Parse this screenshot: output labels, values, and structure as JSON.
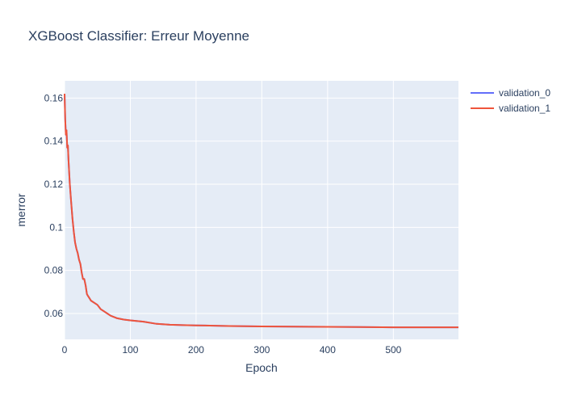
{
  "chart_data": {
    "type": "line",
    "title": "XGBoost Classifier: Erreur Moyenne",
    "xlabel": "Epoch",
    "ylabel": "merror",
    "xlim": [
      0,
      599
    ],
    "ylim": [
      0.048,
      0.168
    ],
    "xticks": [
      0,
      100,
      200,
      300,
      400,
      500
    ],
    "yticks": [
      0.06,
      0.08,
      0.1,
      0.12,
      0.14,
      0.16
    ],
    "ytick_labels": [
      "0.06",
      "0.08",
      "0.1",
      "0.12",
      "0.14",
      "0.16"
    ],
    "grid": true,
    "legend_position": "top-right",
    "series": [
      {
        "name": "validation_0",
        "color": "#636efa",
        "x": [
          0,
          1,
          2,
          3,
          4,
          5,
          6,
          8,
          10,
          12,
          14,
          16,
          18,
          20,
          22,
          24,
          26,
          28,
          30,
          32,
          34,
          36,
          38,
          40,
          45,
          50,
          55,
          60,
          70,
          80,
          90,
          100,
          120,
          140,
          160,
          180,
          200,
          250,
          300,
          350,
          400,
          450,
          500,
          550,
          599
        ],
        "y": [
          0.162,
          0.15,
          0.143,
          0.145,
          0.137,
          0.138,
          0.131,
          0.12,
          0.112,
          0.104,
          0.098,
          0.093,
          0.09,
          0.088,
          0.085,
          0.083,
          0.079,
          0.076,
          0.076,
          0.073,
          0.069,
          0.068,
          0.067,
          0.066,
          0.065,
          0.064,
          0.062,
          0.061,
          0.059,
          0.0578,
          0.0572,
          0.0568,
          0.0562,
          0.0552,
          0.0548,
          0.0546,
          0.0545,
          0.0542,
          0.054,
          0.0539,
          0.0538,
          0.0537,
          0.0536,
          0.0536,
          0.0536
        ]
      },
      {
        "name": "validation_1",
        "color": "#ef553b",
        "x": [
          0,
          1,
          2,
          3,
          4,
          5,
          6,
          8,
          10,
          12,
          14,
          16,
          18,
          20,
          22,
          24,
          26,
          28,
          30,
          32,
          34,
          36,
          38,
          40,
          45,
          50,
          55,
          60,
          70,
          80,
          90,
          100,
          120,
          140,
          160,
          180,
          200,
          250,
          300,
          350,
          400,
          450,
          500,
          550,
          599
        ],
        "y": [
          0.162,
          0.15,
          0.143,
          0.145,
          0.137,
          0.138,
          0.131,
          0.12,
          0.112,
          0.104,
          0.098,
          0.093,
          0.09,
          0.088,
          0.085,
          0.083,
          0.079,
          0.076,
          0.076,
          0.073,
          0.069,
          0.068,
          0.067,
          0.066,
          0.065,
          0.064,
          0.062,
          0.061,
          0.059,
          0.0578,
          0.0572,
          0.0568,
          0.0562,
          0.0552,
          0.0548,
          0.0546,
          0.0545,
          0.0542,
          0.054,
          0.0539,
          0.0538,
          0.0537,
          0.0536,
          0.0536,
          0.0536
        ]
      }
    ]
  }
}
